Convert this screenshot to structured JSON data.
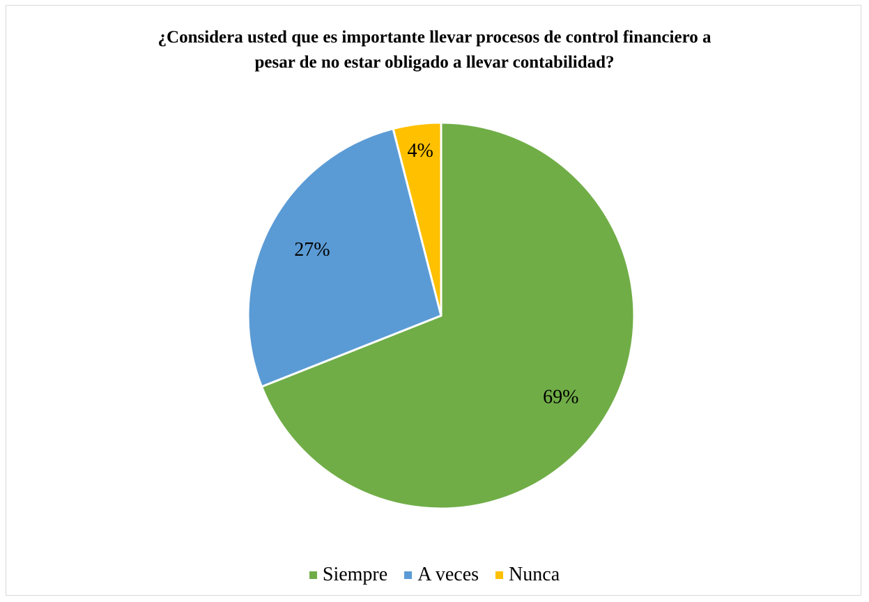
{
  "chart_data": {
    "type": "pie",
    "title": "¿Considera usted que es importante llevar procesos de control financiero a pesar de no estar obligado a llevar contabilidad?",
    "title_lines": [
      "¿Considera usted que es importante llevar procesos de control financiero a",
      "pesar de no estar obligado a llevar contabilidad?"
    ],
    "categories": [
      "Siempre",
      "A veces",
      "Nunca"
    ],
    "values": [
      69,
      27,
      4
    ],
    "data_labels": [
      "69%",
      "27%",
      "4%"
    ],
    "colors": [
      "#70ad47",
      "#5b9bd5",
      "#ffc000"
    ],
    "legend_position": "bottom",
    "start_angle_deg": 0,
    "direction": "clockwise"
  }
}
